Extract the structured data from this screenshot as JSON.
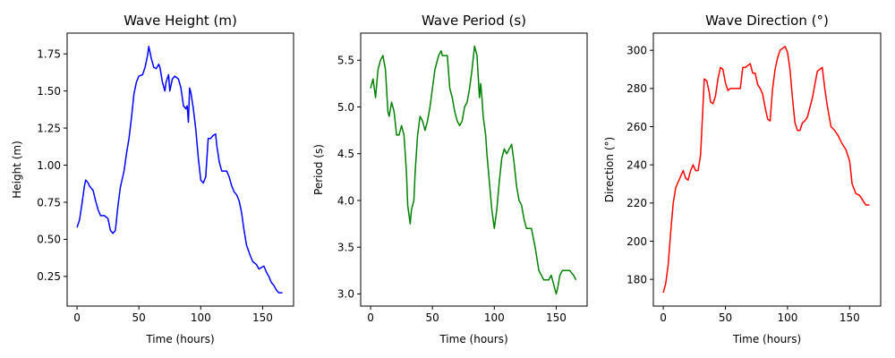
{
  "chart_data": [
    {
      "type": "line",
      "title": "Wave Height (m)",
      "xlabel": "Time (hours)",
      "ylabel": "Height (m)",
      "color": "#0000ff",
      "xlim": [
        -8,
        175
      ],
      "ylim": [
        0.05,
        1.89
      ],
      "xticks": [
        0,
        50,
        100,
        150
      ],
      "yticks": [
        0.25,
        0.5,
        0.75,
        1.0,
        1.25,
        1.5,
        1.75
      ],
      "ytick_labels": [
        "0.25",
        "0.50",
        "0.75",
        "1.00",
        "1.25",
        "1.50",
        "1.75"
      ],
      "series": [
        {
          "x": [
            0,
            2,
            4,
            6,
            7,
            9,
            10,
            12,
            13,
            15,
            17,
            19,
            22,
            25,
            27,
            29,
            31,
            33,
            35,
            38,
            40,
            42,
            44,
            46,
            48,
            50,
            53,
            55,
            57,
            58,
            60,
            62,
            64,
            66,
            67,
            69,
            71,
            72,
            74,
            75,
            77,
            79,
            82,
            84,
            86,
            88,
            89,
            90,
            91,
            92,
            94,
            96,
            98,
            100,
            102,
            104,
            106,
            108,
            110,
            112,
            113,
            115,
            117,
            119,
            121,
            123,
            125,
            127,
            129,
            131,
            133,
            135,
            137,
            140,
            142,
            145,
            147,
            149,
            151,
            153,
            155,
            157,
            159,
            161,
            163,
            166
          ],
          "y": [
            0.58,
            0.63,
            0.74,
            0.86,
            0.9,
            0.88,
            0.86,
            0.84,
            0.83,
            0.76,
            0.7,
            0.66,
            0.66,
            0.64,
            0.56,
            0.54,
            0.56,
            0.72,
            0.85,
            0.96,
            1.08,
            1.18,
            1.32,
            1.48,
            1.56,
            1.6,
            1.61,
            1.66,
            1.74,
            1.8,
            1.72,
            1.66,
            1.65,
            1.68,
            1.66,
            1.56,
            1.5,
            1.56,
            1.61,
            1.5,
            1.58,
            1.6,
            1.58,
            1.52,
            1.4,
            1.38,
            1.4,
            1.29,
            1.52,
            1.49,
            1.38,
            1.24,
            1.05,
            0.9,
            0.88,
            0.92,
            1.18,
            1.18,
            1.2,
            1.21,
            1.13,
            1.02,
            0.96,
            0.96,
            0.96,
            0.92,
            0.86,
            0.82,
            0.8,
            0.76,
            0.68,
            0.56,
            0.46,
            0.39,
            0.35,
            0.33,
            0.3,
            0.31,
            0.32,
            0.28,
            0.25,
            0.21,
            0.19,
            0.16,
            0.14,
            0.14
          ]
        }
      ]
    },
    {
      "type": "line",
      "title": "Wave Period (s)",
      "xlabel": "Time (hours)",
      "ylabel": "Period (s)",
      "color": "#008000",
      "xlim": [
        -8,
        175
      ],
      "ylim": [
        2.87,
        5.79
      ],
      "xticks": [
        0,
        50,
        100,
        150
      ],
      "yticks": [
        3.0,
        3.5,
        4.0,
        4.5,
        5.0,
        5.5
      ],
      "ytick_labels": [
        "3.0",
        "3.5",
        "4.0",
        "4.5",
        "5.0",
        "5.5"
      ],
      "series": [
        {
          "x": [
            0,
            2,
            4,
            6,
            8,
            10,
            12,
            14,
            15,
            17,
            19,
            21,
            23,
            25,
            27,
            29,
            30,
            32,
            33,
            35,
            36,
            38,
            40,
            42,
            44,
            46,
            48,
            50,
            52,
            54,
            55,
            57,
            58,
            60,
            62,
            64,
            66,
            68,
            70,
            72,
            74,
            76,
            78,
            80,
            82,
            84,
            86,
            88,
            89,
            90,
            91,
            93,
            94,
            96,
            98,
            100,
            102,
            104,
            106,
            108,
            110,
            112,
            114,
            116,
            118,
            120,
            122,
            124,
            126,
            128,
            130,
            133,
            136,
            138,
            140,
            142,
            144,
            146,
            148,
            150,
            151,
            153,
            155,
            157,
            159,
            161,
            164,
            166
          ],
          "y": [
            5.2,
            5.3,
            5.1,
            5.4,
            5.5,
            5.55,
            5.4,
            4.95,
            4.9,
            5.05,
            4.95,
            4.7,
            4.7,
            4.8,
            4.7,
            4.3,
            3.95,
            3.75,
            3.9,
            4.0,
            4.3,
            4.7,
            4.9,
            4.85,
            4.75,
            4.85,
            5.0,
            5.2,
            5.4,
            5.5,
            5.55,
            5.6,
            5.55,
            5.55,
            5.55,
            5.2,
            5.1,
            4.95,
            4.85,
            4.8,
            4.85,
            5.0,
            5.05,
            5.2,
            5.4,
            5.65,
            5.55,
            5.1,
            5.25,
            5.1,
            4.9,
            4.7,
            4.5,
            4.2,
            3.9,
            3.7,
            3.9,
            4.2,
            4.45,
            4.55,
            4.5,
            4.55,
            4.6,
            4.4,
            4.15,
            4.0,
            3.95,
            3.8,
            3.7,
            3.7,
            3.7,
            3.5,
            3.25,
            3.2,
            3.15,
            3.15,
            3.15,
            3.2,
            3.1,
            3.0,
            3.05,
            3.2,
            3.25,
            3.25,
            3.25,
            3.25,
            3.2,
            3.15
          ]
        }
      ]
    },
    {
      "type": "line",
      "title": "Wave Direction (°)",
      "xlabel": "Time (hours)",
      "ylabel": "Direction (°)",
      "color": "#ff0000",
      "xlim": [
        -8,
        175
      ],
      "ylim": [
        166,
        309
      ],
      "xticks": [
        0,
        50,
        100,
        150
      ],
      "yticks": [
        180,
        200,
        220,
        240,
        260,
        280,
        300
      ],
      "ytick_labels": [
        "180",
        "200",
        "220",
        "240",
        "260",
        "280",
        "300"
      ],
      "series": [
        {
          "x": [
            0,
            2,
            4,
            6,
            8,
            10,
            12,
            14,
            16,
            18,
            20,
            22,
            24,
            26,
            28,
            30,
            31,
            33,
            35,
            37,
            38,
            40,
            42,
            44,
            46,
            48,
            50,
            52,
            54,
            56,
            58,
            60,
            62,
            64,
            66,
            68,
            70,
            72,
            74,
            76,
            78,
            80,
            82,
            84,
            86,
            88,
            90,
            92,
            94,
            96,
            98,
            100,
            102,
            104,
            106,
            108,
            110,
            112,
            114,
            116,
            118,
            120,
            122,
            124,
            126,
            128,
            130,
            132,
            135,
            138,
            141,
            144,
            147,
            150,
            152,
            155,
            158,
            160,
            163,
            166
          ],
          "y": [
            173,
            178,
            188,
            205,
            220,
            228,
            231,
            234,
            237,
            233,
            232,
            237,
            240,
            237,
            237,
            245,
            258,
            285,
            284,
            278,
            273,
            272,
            276,
            285,
            291,
            290,
            283,
            279,
            280,
            280,
            280,
            280,
            280,
            291,
            291,
            292,
            293,
            288,
            288,
            282,
            280,
            277,
            270,
            264,
            263,
            280,
            290,
            296,
            300,
            301,
            302,
            299,
            290,
            275,
            262,
            258,
            258,
            262,
            263,
            265,
            270,
            275,
            282,
            289,
            290,
            291,
            280,
            271,
            260,
            258,
            255,
            251,
            248,
            242,
            230,
            225,
            224,
            222,
            219,
            219
          ]
        }
      ]
    }
  ]
}
